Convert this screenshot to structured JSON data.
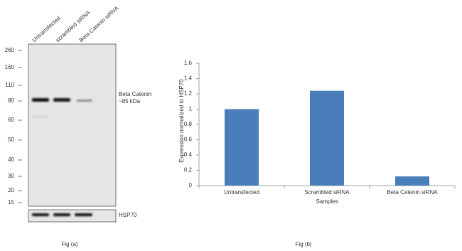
{
  "blot": {
    "lanes": [
      "Untransfected",
      "scrambled siRNA",
      "Beta Catenin siRNA"
    ],
    "markers": [
      "260",
      "160",
      "110",
      "80",
      "60",
      "50",
      "40",
      "30",
      "20",
      "15"
    ],
    "band_label": [
      "Beta Catenin",
      "~85 kDa"
    ],
    "control_label": "HSP70",
    "caption": "Fig (a)"
  },
  "chart_data": {
    "type": "bar",
    "caption": "Fig (b)",
    "x_label": "Samples",
    "y_label": "Expression  normalized to HSP70",
    "categories": [
      "Untransfected",
      "Scrambled siRNA",
      "Beta Catenin siRNA"
    ],
    "values": [
      1,
      1.24,
      0.12
    ],
    "color": "#4a7ebb",
    "ylim": [
      0,
      1.6
    ],
    "yticks": [
      0,
      0.2,
      0.4,
      0.6,
      0.8,
      1,
      1.2,
      1.4,
      1.6
    ],
    "grid": false
  }
}
